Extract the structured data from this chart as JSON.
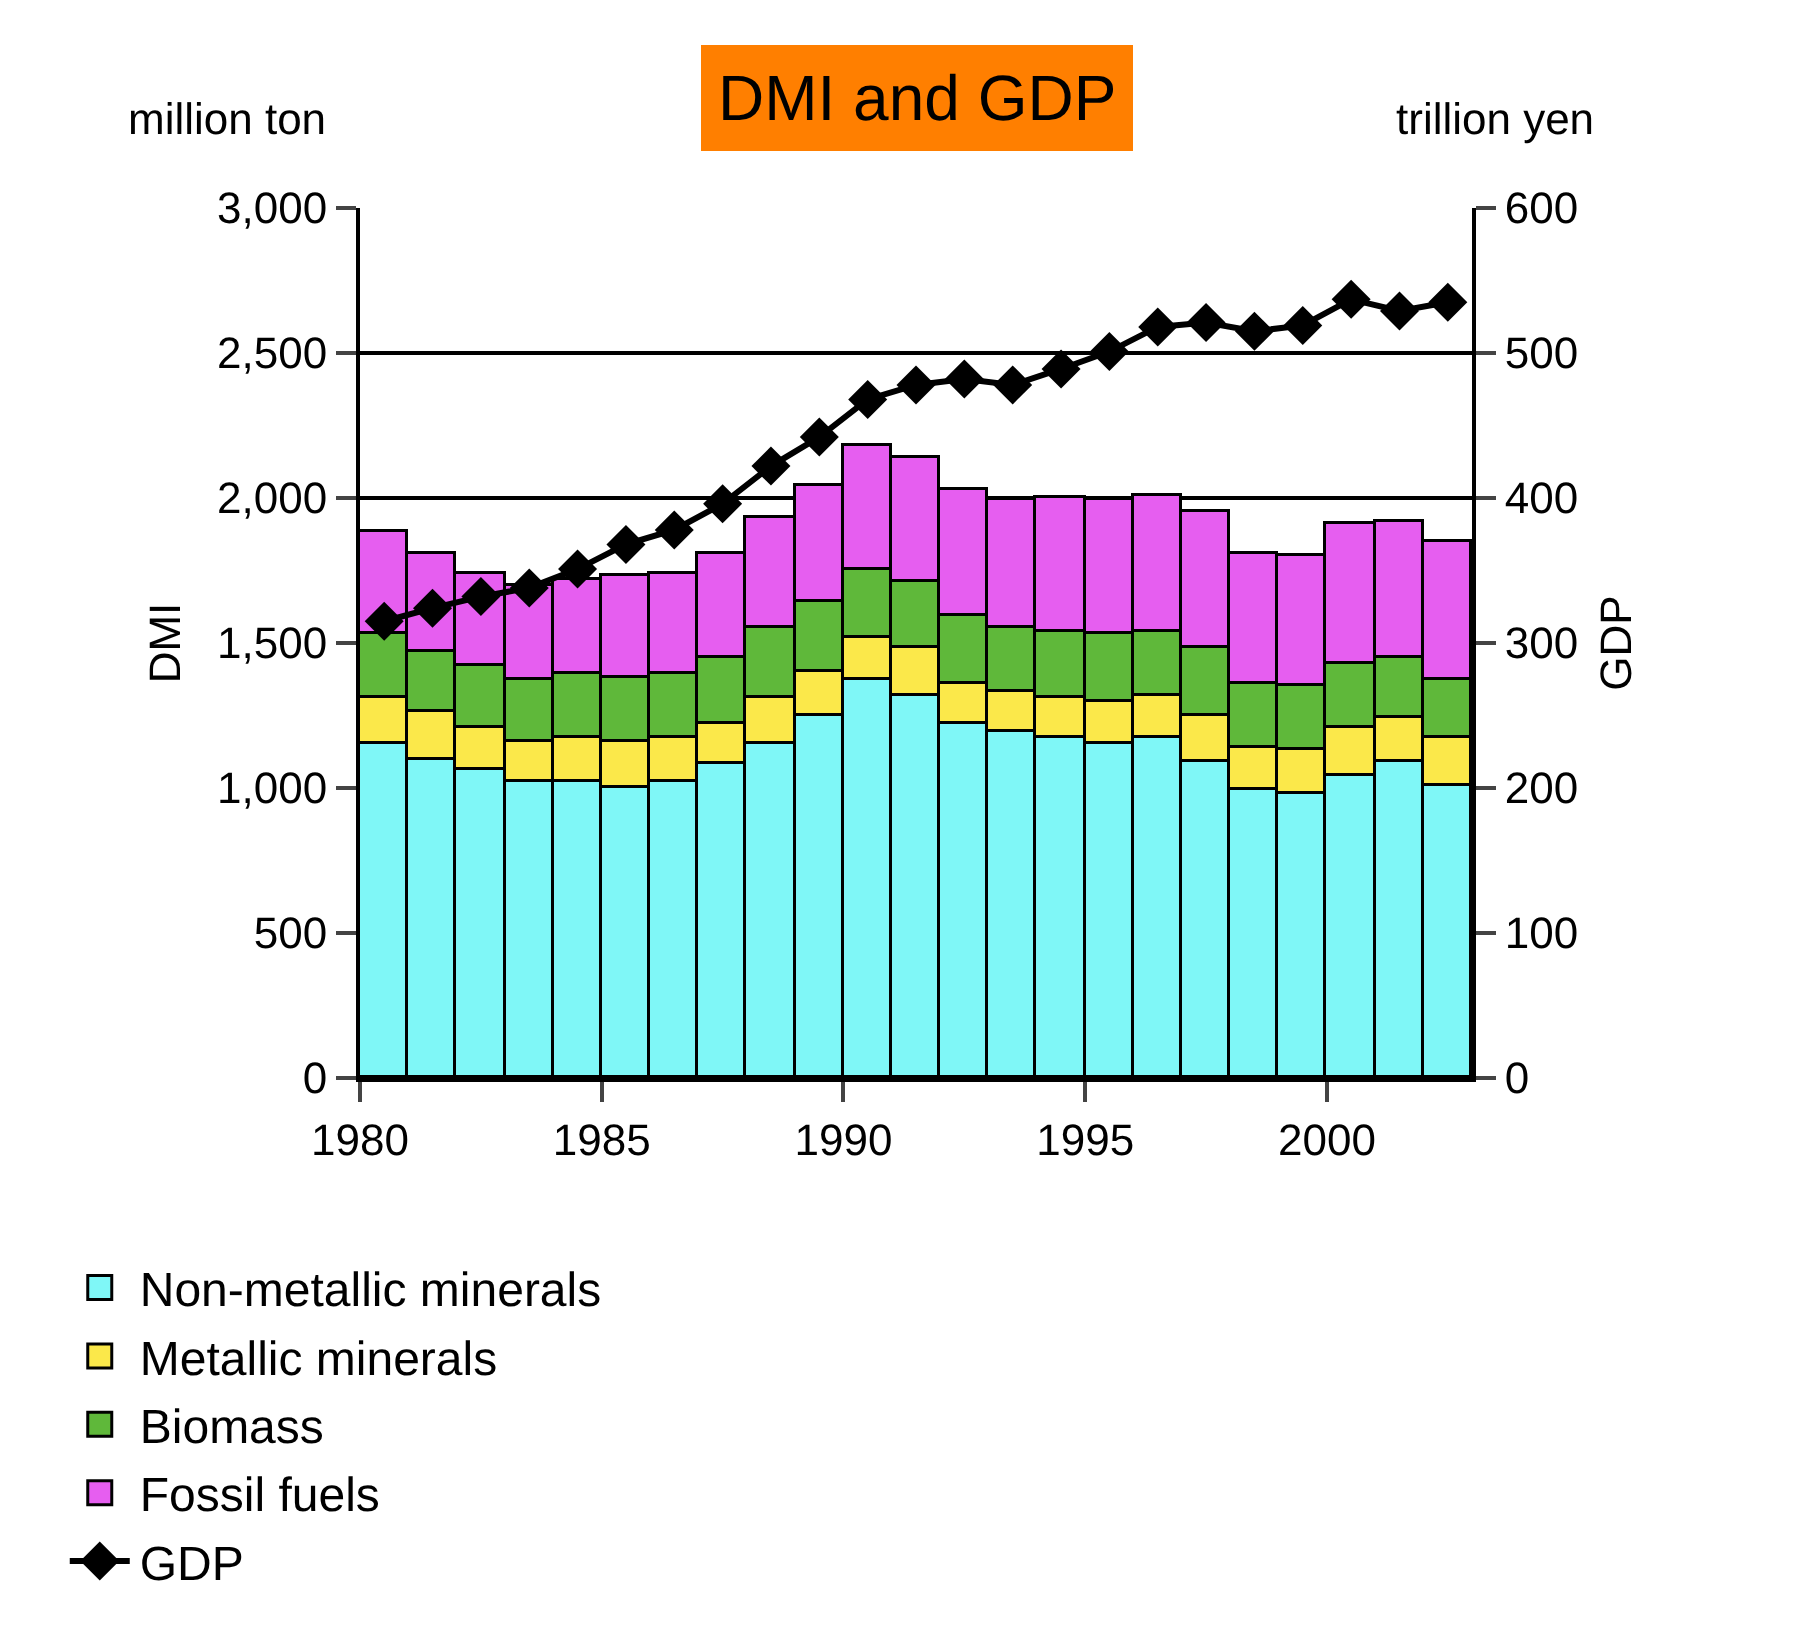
{
  "chart_data": {
    "type": "bar",
    "title": "DMI and GDP",
    "ylabel": "DMI",
    "y2label": "GDP",
    "annotations": [
      "million ton",
      "trillion yen"
    ],
    "x": [
      1980.5,
      1981.5,
      1982.5,
      1983.5,
      1984.5,
      1985.5,
      1986.5,
      1987.5,
      1988.5,
      1989.5,
      1990.5,
      1991.5,
      1992.5,
      1993.5,
      1994.5,
      1995.5,
      1996.5,
      1997.5,
      1998.5,
      1999.5,
      2000.5,
      2001.5,
      2002.5
    ],
    "stacked": true,
    "series": [
      {
        "name": "Non-metallic minerals",
        "color": "#7ff7f7",
        "values": [
          1150,
          1100,
          1060,
          1020,
          1020,
          1000,
          1020,
          1080,
          1150,
          1250,
          1370,
          1320,
          1220,
          1190,
          1170,
          1150,
          1170,
          1090,
          990,
          980,
          1040,
          1090,
          1010
        ]
      },
      {
        "name": "Metallic minerals",
        "color": "#fbe84a",
        "values": [
          160,
          160,
          150,
          140,
          150,
          160,
          150,
          140,
          160,
          150,
          150,
          160,
          140,
          140,
          140,
          150,
          150,
          160,
          150,
          150,
          170,
          150,
          160
        ]
      },
      {
        "name": "Biomass",
        "color": "#5fb83a",
        "values": [
          220,
          210,
          210,
          210,
          220,
          220,
          220,
          230,
          240,
          240,
          230,
          230,
          230,
          220,
          230,
          230,
          220,
          230,
          220,
          220,
          220,
          210,
          200
        ]
      },
      {
        "name": "Fossil fuels",
        "color": "#e65ef0",
        "values": [
          350,
          340,
          320,
          330,
          330,
          350,
          350,
          360,
          380,
          400,
          430,
          430,
          440,
          440,
          460,
          460,
          470,
          470,
          450,
          450,
          480,
          470,
          480
        ]
      },
      {
        "name": "GDP",
        "type": "line",
        "axis": "y2",
        "color": "#000000",
        "marker": "diamond",
        "values": [
          315,
          324,
          332,
          338,
          351,
          368,
          378,
          396,
          422,
          442,
          468,
          478,
          482,
          478,
          489,
          501,
          518,
          521,
          515,
          519,
          537,
          529,
          535
        ]
      }
    ],
    "xlim": [
      1980,
      2003
    ],
    "xticks": [
      1980,
      1985,
      1990,
      1995,
      2000
    ],
    "ylim": [
      0,
      3000
    ],
    "yticks": [
      {
        "value": 0,
        "label": "0"
      },
      {
        "value": 500,
        "label": "500"
      },
      {
        "value": 1000,
        "label": "1,000"
      },
      {
        "value": 1500,
        "label": "1,500"
      },
      {
        "value": 2000,
        "label": "2,000"
      },
      {
        "value": 2500,
        "label": "2,500"
      },
      {
        "value": 3000,
        "label": "3,000"
      }
    ],
    "y2lim": [
      0,
      600
    ],
    "y2ticks": [
      0,
      100,
      200,
      300,
      400,
      500,
      600
    ],
    "grid": "y",
    "legend": "bottom"
  }
}
